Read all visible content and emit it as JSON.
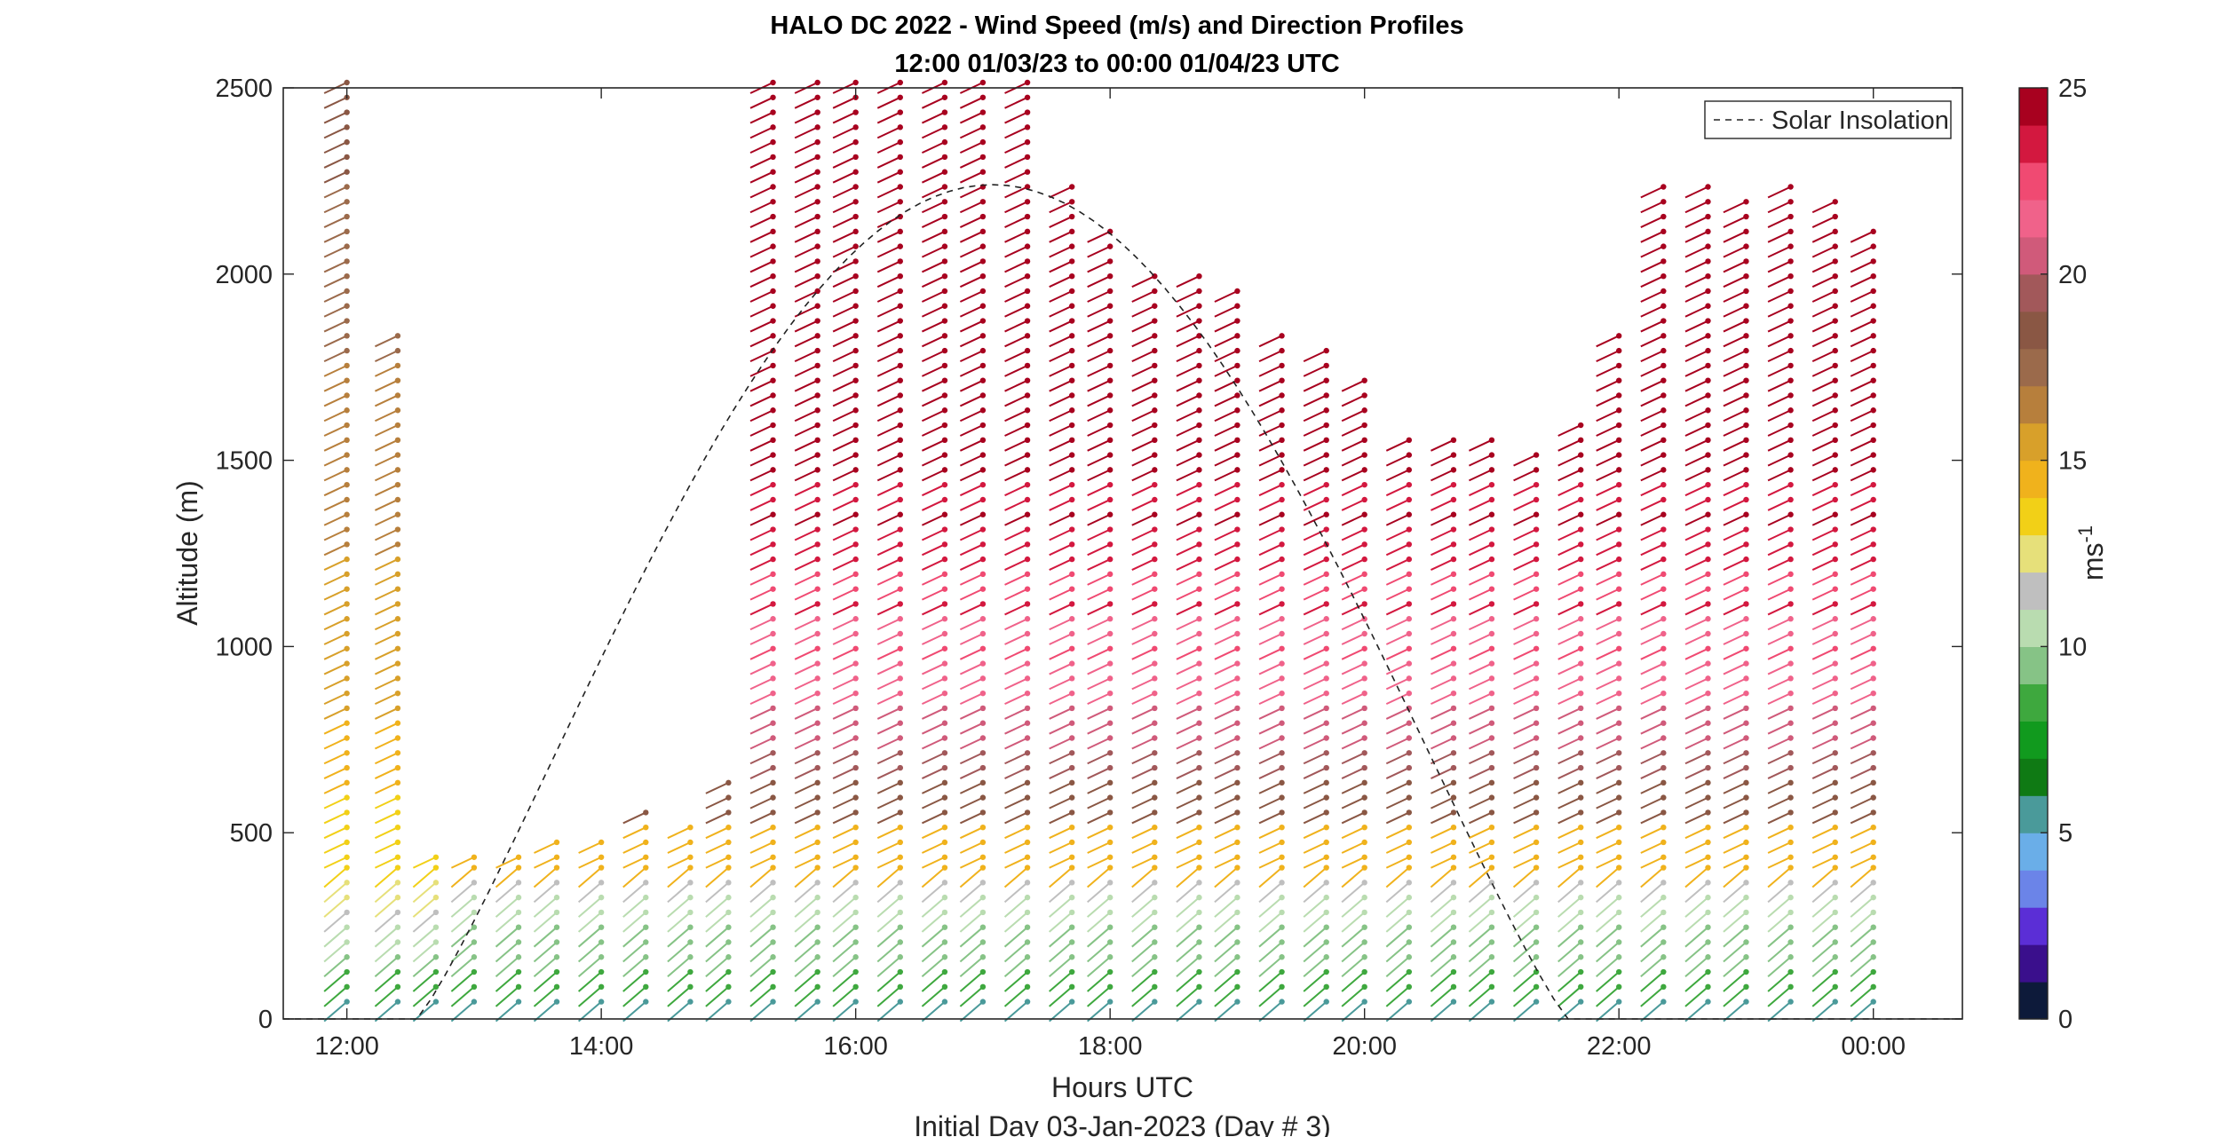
{
  "chart_data": {
    "type": "wind-barb-profile",
    "title_line1": "HALO DC 2022 - Wind Speed (m/s) and Direction Profiles",
    "title_line2": "12:00 01/03/23 to 00:00 01/04/23  UTC",
    "xlabel": "Hours UTC",
    "xsublabel": "Initial Day 03-Jan-2023 (Day # 3)",
    "ylabel": "Altitude (m)",
    "xlim_hours": [
      11.5,
      24.7
    ],
    "ylim": [
      0,
      2500
    ],
    "x_ticks": [
      {
        "hour": 12,
        "label": "12:00"
      },
      {
        "hour": 14,
        "label": "14:00"
      },
      {
        "hour": 16,
        "label": "16:00"
      },
      {
        "hour": 18,
        "label": "18:00"
      },
      {
        "hour": 20,
        "label": "20:00"
      },
      {
        "hour": 22,
        "label": "22:00"
      },
      {
        "hour": 24,
        "label": "00:00"
      }
    ],
    "y_ticks": [
      0,
      500,
      1000,
      1500,
      2000,
      2500
    ],
    "y_tick_labels": [
      "0",
      "500",
      "1000",
      "1500",
      "2000",
      "2500"
    ],
    "colorbar": {
      "label": "ms",
      "label_exponent": "-1",
      "range": [
        0,
        25
      ],
      "ticks": [
        0,
        5,
        10,
        15,
        20,
        25
      ],
      "tick_labels": [
        "0",
        "5",
        "10",
        "15",
        "20",
        "25"
      ],
      "colors": [
        "#0d1a3a",
        "#3a0f8c",
        "#5b2ed6",
        "#6b84e8",
        "#6aaee8",
        "#4a9a9a",
        "#0f7a14",
        "#119a1e",
        "#3ea83e",
        "#86c386",
        "#b9dcb0",
        "#bfbfbf",
        "#e6e07a",
        "#f2d017",
        "#f0b21c",
        "#d8a02a",
        "#b77f3c",
        "#9b6a4b",
        "#8a5744",
        "#a2585a",
        "#d05a7a",
        "#f0628a",
        "#f04a72",
        "#d3183f",
        "#a8011f"
      ]
    },
    "legend": {
      "label": "Solar Insolation",
      "position": "top-right",
      "style": "dashed black"
    },
    "solar_insolation": {
      "start_hour": 12.55,
      "peak_hour": 17.2,
      "end_hour": 21.6,
      "peak_altitude_equiv": 2240
    },
    "profile_times_hours": [
      12.0,
      12.4,
      12.7,
      13.0,
      13.35,
      13.65,
      14.0,
      14.35,
      14.7,
      15.0,
      15.35,
      15.7,
      16.0,
      16.35,
      16.7,
      17.0,
      17.35,
      17.7,
      18.0,
      18.35,
      18.7,
      19.0,
      19.35,
      19.7,
      20.0,
      20.35,
      20.7,
      21.0,
      21.35,
      21.7,
      22.0,
      22.35,
      22.7,
      23.0,
      23.35,
      23.7,
      24.0
    ],
    "profile_top_altitudes_m": [
      2500,
      1820,
      420,
      420,
      440,
      460,
      480,
      540,
      500,
      650,
      2500,
      2500,
      2500,
      2500,
      2500,
      2500,
      2500,
      2240,
      2120,
      2000,
      1980,
      1960,
      1840,
      1800,
      1700,
      1540,
      1540,
      1540,
      1520,
      1600,
      1840,
      2240,
      2230,
      2200,
      2220,
      2180,
      2130
    ]
  }
}
